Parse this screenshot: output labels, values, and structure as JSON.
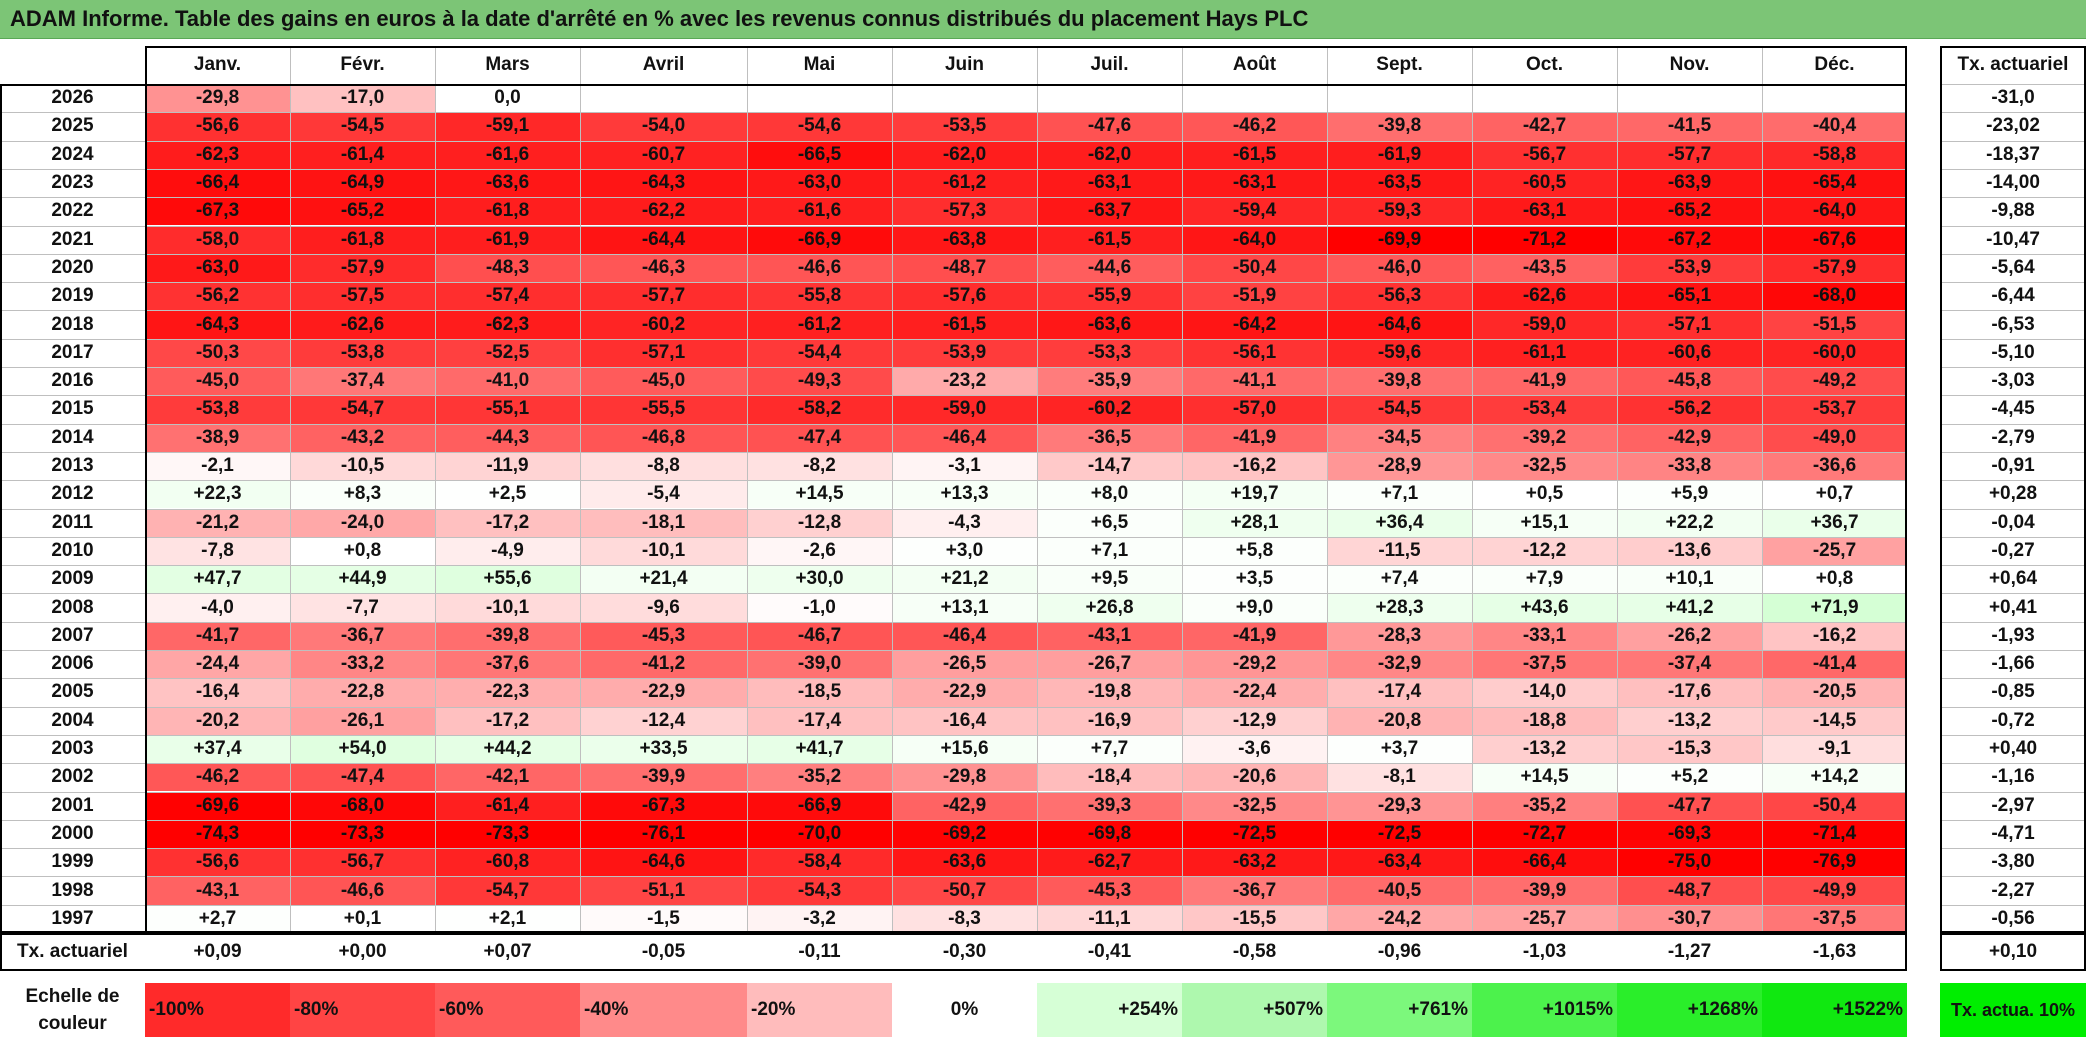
{
  "title": "ADAM Informe. Table des gains en euros à la date d'arrêté en % avec les revenus connus distribués du placement Hays PLC",
  "months": [
    "Janv.",
    "Févr.",
    "Mars",
    "Avril",
    "Mai",
    "Juin",
    "Juil.",
    "Août",
    "Sept.",
    "Oct.",
    "Nov.",
    "Déc."
  ],
  "tx_header": "Tx. actuariel",
  "footer_label": "Tx. actuariel",
  "footer_values": [
    "+0,09",
    "+0,00",
    "+0,07",
    "-0,05",
    "-0,11",
    "-0,30",
    "-0,41",
    "-0,58",
    "-0,96",
    "-1,03",
    "-1,27",
    "-1,63"
  ],
  "footer_total": "+0,10",
  "scale_label": "Echelle de couleur",
  "scale": [
    "-100%",
    "-80%",
    "-60%",
    "-40%",
    "-20%",
    "0%",
    "+254%",
    "+507%",
    "+761%",
    "+1015%",
    "+1268%",
    "+1522%"
  ],
  "tx_legend": "Tx. actua. 10%",
  "colors": {
    "title_bg": "#7cc576",
    "legend_green": "#00ee00",
    "negative_max": "#ff0000",
    "positive_max": "#00ff00"
  },
  "chart_data": {
    "type": "heatmap",
    "rows": [
      {
        "year": "2026",
        "values": [
          "-29,8",
          "-17,0",
          "0,0",
          "",
          "",
          "",
          "",
          "",
          "",
          "",
          "",
          ""
        ],
        "tx": "-31,0"
      },
      {
        "year": "2025",
        "values": [
          "-56,6",
          "-54,5",
          "-59,1",
          "-54,0",
          "-54,6",
          "-53,5",
          "-47,6",
          "-46,2",
          "-39,8",
          "-42,7",
          "-41,5",
          "-40,4"
        ],
        "tx": "-23,02"
      },
      {
        "year": "2024",
        "values": [
          "-62,3",
          "-61,4",
          "-61,6",
          "-60,7",
          "-66,5",
          "-62,0",
          "-62,0",
          "-61,5",
          "-61,9",
          "-56,7",
          "-57,7",
          "-58,8"
        ],
        "tx": "-18,37"
      },
      {
        "year": "2023",
        "values": [
          "-66,4",
          "-64,9",
          "-63,6",
          "-64,3",
          "-63,0",
          "-61,2",
          "-63,1",
          "-63,1",
          "-63,5",
          "-60,5",
          "-63,9",
          "-65,4"
        ],
        "tx": "-14,00"
      },
      {
        "year": "2022",
        "values": [
          "-67,3",
          "-65,2",
          "-61,8",
          "-62,2",
          "-61,6",
          "-57,3",
          "-63,7",
          "-59,4",
          "-59,3",
          "-63,1",
          "-65,2",
          "-64,0"
        ],
        "tx": "-9,88"
      },
      {
        "year": "2021",
        "values": [
          "-58,0",
          "-61,8",
          "-61,9",
          "-64,4",
          "-66,9",
          "-63,8",
          "-61,5",
          "-64,0",
          "-69,9",
          "-71,2",
          "-67,2",
          "-67,6"
        ],
        "tx": "-10,47"
      },
      {
        "year": "2020",
        "values": [
          "-63,0",
          "-57,9",
          "-48,3",
          "-46,3",
          "-46,6",
          "-48,7",
          "-44,6",
          "-50,4",
          "-46,0",
          "-43,5",
          "-53,9",
          "-57,9"
        ],
        "tx": "-5,64"
      },
      {
        "year": "2019",
        "values": [
          "-56,2",
          "-57,5",
          "-57,4",
          "-57,7",
          "-55,8",
          "-57,6",
          "-55,9",
          "-51,9",
          "-56,3",
          "-62,6",
          "-65,1",
          "-68,0"
        ],
        "tx": "-6,44"
      },
      {
        "year": "2018",
        "values": [
          "-64,3",
          "-62,6",
          "-62,3",
          "-60,2",
          "-61,2",
          "-61,5",
          "-63,6",
          "-64,2",
          "-64,6",
          "-59,0",
          "-57,1",
          "-51,5"
        ],
        "tx": "-6,53"
      },
      {
        "year": "2017",
        "values": [
          "-50,3",
          "-53,8",
          "-52,5",
          "-57,1",
          "-54,4",
          "-53,9",
          "-53,3",
          "-56,1",
          "-59,6",
          "-61,1",
          "-60,6",
          "-60,0"
        ],
        "tx": "-5,10"
      },
      {
        "year": "2016",
        "values": [
          "-45,0",
          "-37,4",
          "-41,0",
          "-45,0",
          "-49,3",
          "-23,2",
          "-35,9",
          "-41,1",
          "-39,8",
          "-41,9",
          "-45,8",
          "-49,2"
        ],
        "tx": "-3,03"
      },
      {
        "year": "2015",
        "values": [
          "-53,8",
          "-54,7",
          "-55,1",
          "-55,5",
          "-58,2",
          "-59,0",
          "-60,2",
          "-57,0",
          "-54,5",
          "-53,4",
          "-56,2",
          "-53,7"
        ],
        "tx": "-4,45"
      },
      {
        "year": "2014",
        "values": [
          "-38,9",
          "-43,2",
          "-44,3",
          "-46,8",
          "-47,4",
          "-46,4",
          "-36,5",
          "-41,9",
          "-34,5",
          "-39,2",
          "-42,9",
          "-49,0"
        ],
        "tx": "-2,79"
      },
      {
        "year": "2013",
        "values": [
          "-2,1",
          "-10,5",
          "-11,9",
          "-8,8",
          "-8,2",
          "-3,1",
          "-14,7",
          "-16,2",
          "-28,9",
          "-32,5",
          "-33,8",
          "-36,6"
        ],
        "tx": "-0,91"
      },
      {
        "year": "2012",
        "values": [
          "+22,3",
          "+8,3",
          "+2,5",
          "-5,4",
          "+14,5",
          "+13,3",
          "+8,0",
          "+19,7",
          "+7,1",
          "+0,5",
          "+5,9",
          "+0,7"
        ],
        "tx": "+0,28"
      },
      {
        "year": "2011",
        "values": [
          "-21,2",
          "-24,0",
          "-17,2",
          "-18,1",
          "-12,8",
          "-4,3",
          "+6,5",
          "+28,1",
          "+36,4",
          "+15,1",
          "+22,2",
          "+36,7"
        ],
        "tx": "-0,04"
      },
      {
        "year": "2010",
        "values": [
          "-7,8",
          "+0,8",
          "-4,9",
          "-10,1",
          "-2,6",
          "+3,0",
          "+7,1",
          "+5,8",
          "-11,5",
          "-12,2",
          "-13,6",
          "-25,7"
        ],
        "tx": "-0,27"
      },
      {
        "year": "2009",
        "values": [
          "+47,7",
          "+44,9",
          "+55,6",
          "+21,4",
          "+30,0",
          "+21,2",
          "+9,5",
          "+3,5",
          "+7,4",
          "+7,9",
          "+10,1",
          "+0,8"
        ],
        "tx": "+0,64"
      },
      {
        "year": "2008",
        "values": [
          "-4,0",
          "-7,7",
          "-10,1",
          "-9,6",
          "-1,0",
          "+13,1",
          "+26,8",
          "+9,0",
          "+28,3",
          "+43,6",
          "+41,2",
          "+71,9"
        ],
        "tx": "+0,41"
      },
      {
        "year": "2007",
        "values": [
          "-41,7",
          "-36,7",
          "-39,8",
          "-45,3",
          "-46,7",
          "-46,4",
          "-43,1",
          "-41,9",
          "-28,3",
          "-33,1",
          "-26,2",
          "-16,2"
        ],
        "tx": "-1,93"
      },
      {
        "year": "2006",
        "values": [
          "-24,4",
          "-33,2",
          "-37,6",
          "-41,2",
          "-39,0",
          "-26,5",
          "-26,7",
          "-29,2",
          "-32,9",
          "-37,5",
          "-37,4",
          "-41,4"
        ],
        "tx": "-1,66"
      },
      {
        "year": "2005",
        "values": [
          "-16,4",
          "-22,8",
          "-22,3",
          "-22,9",
          "-18,5",
          "-22,9",
          "-19,8",
          "-22,4",
          "-17,4",
          "-14,0",
          "-17,6",
          "-20,5"
        ],
        "tx": "-0,85"
      },
      {
        "year": "2004",
        "values": [
          "-20,2",
          "-26,1",
          "-17,2",
          "-12,4",
          "-17,4",
          "-16,4",
          "-16,9",
          "-12,9",
          "-20,8",
          "-18,8",
          "-13,2",
          "-14,5"
        ],
        "tx": "-0,72"
      },
      {
        "year": "2003",
        "values": [
          "+37,4",
          "+54,0",
          "+44,2",
          "+33,5",
          "+41,7",
          "+15,6",
          "+7,7",
          "-3,6",
          "+3,7",
          "-13,2",
          "-15,3",
          "-9,1"
        ],
        "tx": "+0,40"
      },
      {
        "year": "2002",
        "values": [
          "-46,2",
          "-47,4",
          "-42,1",
          "-39,9",
          "-35,2",
          "-29,8",
          "-18,4",
          "-20,6",
          "-8,1",
          "+14,5",
          "+5,2",
          "+14,2"
        ],
        "tx": "-1,16"
      },
      {
        "year": "2001",
        "values": [
          "-69,6",
          "-68,0",
          "-61,4",
          "-67,3",
          "-66,9",
          "-42,9",
          "-39,3",
          "-32,5",
          "-29,3",
          "-35,2",
          "-47,7",
          "-50,4"
        ],
        "tx": "-2,97"
      },
      {
        "year": "2000",
        "values": [
          "-74,3",
          "-73,3",
          "-73,3",
          "-76,1",
          "-70,0",
          "-69,2",
          "-69,8",
          "-72,5",
          "-72,5",
          "-72,7",
          "-69,3",
          "-71,4"
        ],
        "tx": "-4,71"
      },
      {
        "year": "1999",
        "values": [
          "-56,6",
          "-56,7",
          "-60,8",
          "-64,6",
          "-58,4",
          "-63,6",
          "-62,7",
          "-63,2",
          "-63,4",
          "-66,4",
          "-75,0",
          "-76,9"
        ],
        "tx": "-3,80"
      },
      {
        "year": "1998",
        "values": [
          "-43,1",
          "-46,6",
          "-54,7",
          "-51,1",
          "-54,3",
          "-50,7",
          "-45,3",
          "-36,7",
          "-40,5",
          "-39,9",
          "-48,7",
          "-49,9"
        ],
        "tx": "-2,27"
      },
      {
        "year": "1997",
        "values": [
          "+2,7",
          "+0,1",
          "+2,1",
          "-1,5",
          "-3,2",
          "-8,3",
          "-11,1",
          "-15,5",
          "-24,2",
          "-25,7",
          "-30,7",
          "-37,5"
        ],
        "tx": "-0,56"
      }
    ]
  }
}
